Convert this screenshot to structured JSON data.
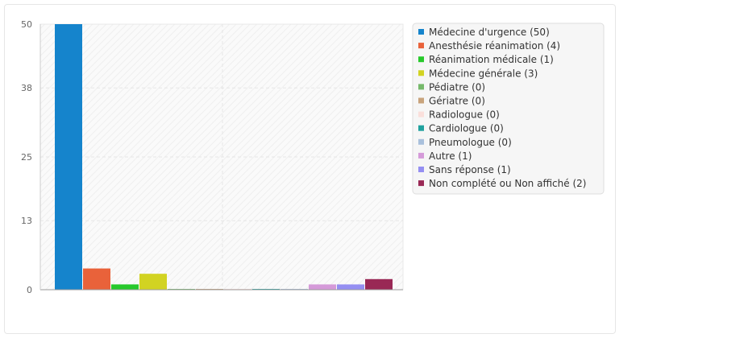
{
  "chart_data": {
    "type": "bar",
    "title": "",
    "xlabel": "",
    "ylabel": "",
    "ylim": [
      0,
      50
    ],
    "yticks": [
      "0",
      "13",
      "25",
      "38",
      "50"
    ],
    "grid": true,
    "legend_position": "right",
    "categories": [
      "Médecine d'urgence (50)",
      "Anesthésie réanimation (4)",
      "Réanimation médicale (1)",
      "Médecine générale (3)",
      "Pédiatre (0)",
      "Gériatre (0)",
      "Radiologue (0)",
      "Cardiologue (0)",
      "Pneumologue (0)",
      "Autre (1)",
      "Sans réponse (1)",
      "Non complété ou Non affiché (2)"
    ],
    "values": [
      50,
      4,
      1,
      3,
      0,
      0,
      0,
      0,
      0,
      1,
      1,
      2
    ],
    "colors": [
      "#1584cc",
      "#e9623a",
      "#27c92b",
      "#d2d322",
      "#76b96b",
      "#c8a37c",
      "#fadfdb",
      "#20a19e",
      "#a9c0dc",
      "#d59ad9",
      "#958ff2",
      "#992855"
    ]
  }
}
